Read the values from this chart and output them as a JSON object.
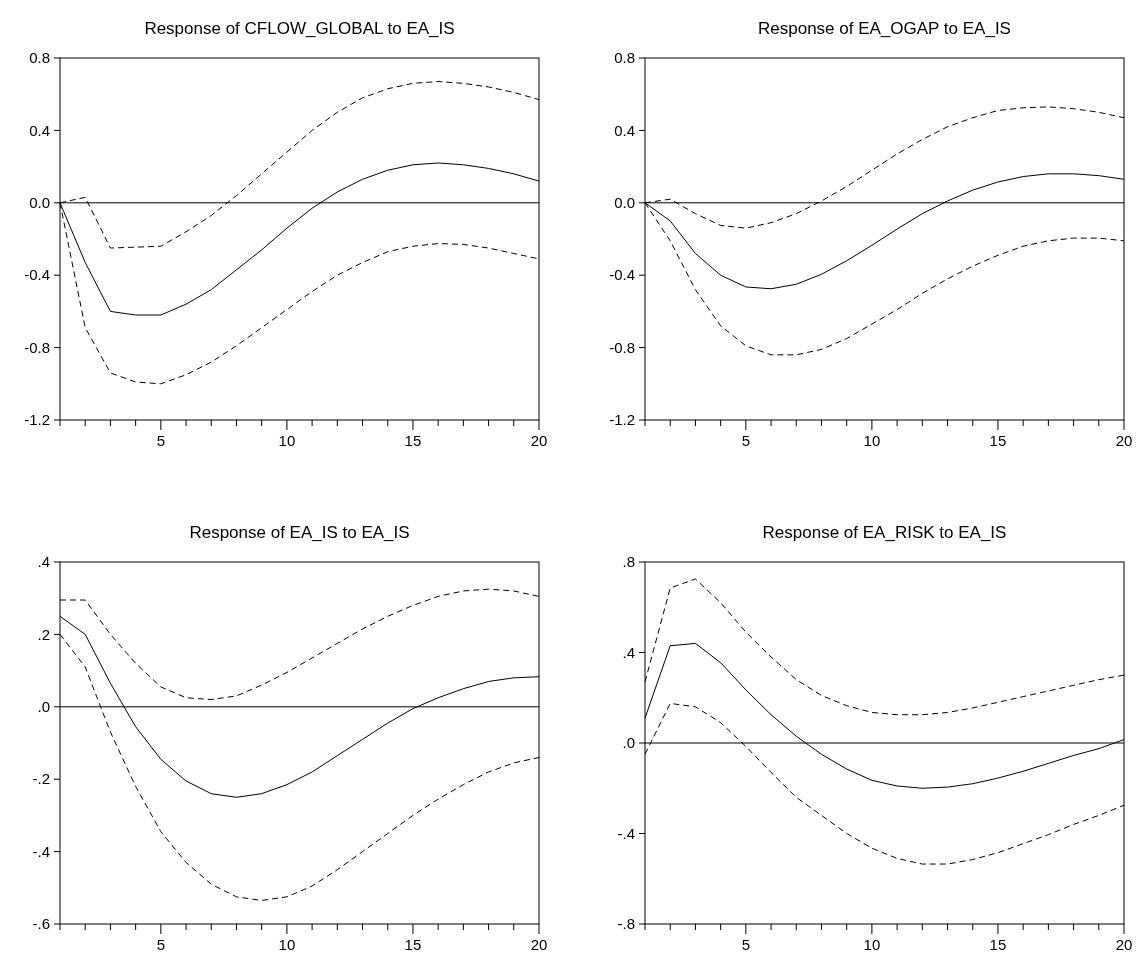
{
  "chart_data": [
    {
      "type": "line",
      "title": "Response of CFLOW_GLOBAL to EA_IS",
      "x": [
        1,
        2,
        3,
        4,
        5,
        6,
        7,
        8,
        9,
        10,
        11,
        12,
        13,
        14,
        15,
        16,
        17,
        18,
        19,
        20
      ],
      "xlim": [
        1,
        20
      ],
      "xticks": [
        {
          "value": 1,
          "label": null
        },
        {
          "value": 2,
          "label": null
        },
        {
          "value": 3,
          "label": null
        },
        {
          "value": 4,
          "label": null
        },
        5,
        {
          "value": 6,
          "label": null
        },
        {
          "value": 7,
          "label": null
        },
        {
          "value": 8,
          "label": null
        },
        {
          "value": 9,
          "label": null
        },
        10,
        {
          "value": 11,
          "label": null
        },
        {
          "value": 12,
          "label": null
        },
        {
          "value": 13,
          "label": null
        },
        {
          "value": 14,
          "label": null
        },
        15,
        {
          "value": 16,
          "label": null
        },
        {
          "value": 17,
          "label": null
        },
        {
          "value": 18,
          "label": null
        },
        {
          "value": 19,
          "label": null
        },
        20
      ],
      "ylim": [
        -1.2,
        0.8
      ],
      "yticks": [
        {
          "value": -1.2,
          "label": "-1.2"
        },
        {
          "value": -0.8,
          "label": "-0.8"
        },
        {
          "value": -0.4,
          "label": "-0.4"
        },
        {
          "value": 0,
          "label": "0.0"
        },
        {
          "value": 0.4,
          "label": "0.4"
        },
        {
          "value": 0.8,
          "label": "0.8"
        }
      ],
      "ref_lines": [
        {
          "axis": "y",
          "value": 0,
          "color": "#000000"
        }
      ],
      "grid": false,
      "series": [
        {
          "color": "#000000",
          "line_style": "solid",
          "values": [
            0,
            -0.33,
            -0.6,
            -0.62,
            -0.62,
            -0.56,
            -0.48,
            -0.37,
            -0.26,
            -0.14,
            -0.03,
            0.06,
            0.13,
            0.18,
            0.21,
            0.22,
            0.21,
            0.19,
            0.16,
            0.12
          ]
        },
        {
          "color": "#000000",
          "line_style": "dashed",
          "values": [
            0,
            0.03,
            -0.25,
            -0.245,
            -0.24,
            -0.16,
            -0.07,
            0.04,
            0.16,
            0.28,
            0.4,
            0.5,
            0.58,
            0.63,
            0.66,
            0.67,
            0.66,
            0.64,
            0.61,
            0.57
          ]
        },
        {
          "color": "#000000",
          "line_style": "dashed",
          "values": [
            0,
            -0.69,
            -0.94,
            -0.99,
            -1.0,
            -0.95,
            -0.88,
            -0.79,
            -0.69,
            -0.59,
            -0.49,
            -0.4,
            -0.33,
            -0.27,
            -0.24,
            -0.225,
            -0.23,
            -0.25,
            -0.28,
            -0.31
          ]
        }
      ]
    },
    {
      "type": "line",
      "title": "Response of EA_OGAP to EA_IS",
      "x": [
        1,
        2,
        3,
        4,
        5,
        6,
        7,
        8,
        9,
        10,
        11,
        12,
        13,
        14,
        15,
        16,
        17,
        18,
        19,
        20
      ],
      "xlim": [
        1,
        20
      ],
      "xticks": [
        {
          "value": 1,
          "label": null
        },
        {
          "value": 2,
          "label": null
        },
        {
          "value": 3,
          "label": null
        },
        {
          "value": 4,
          "label": null
        },
        5,
        {
          "value": 6,
          "label": null
        },
        {
          "value": 7,
          "label": null
        },
        {
          "value": 8,
          "label": null
        },
        {
          "value": 9,
          "label": null
        },
        10,
        {
          "value": 11,
          "label": null
        },
        {
          "value": 12,
          "label": null
        },
        {
          "value": 13,
          "label": null
        },
        {
          "value": 14,
          "label": null
        },
        15,
        {
          "value": 16,
          "label": null
        },
        {
          "value": 17,
          "label": null
        },
        {
          "value": 18,
          "label": null
        },
        {
          "value": 19,
          "label": null
        },
        20
      ],
      "ylim": [
        -1.2,
        0.8
      ],
      "yticks": [
        {
          "value": -1.2,
          "label": "-1.2"
        },
        {
          "value": -0.8,
          "label": "-0.8"
        },
        {
          "value": -0.4,
          "label": "-0.4"
        },
        {
          "value": 0,
          "label": "0.0"
        },
        {
          "value": 0.4,
          "label": "0.4"
        },
        {
          "value": 0.8,
          "label": "0.8"
        }
      ],
      "ref_lines": [
        {
          "axis": "y",
          "value": 0,
          "color": "#000000"
        }
      ],
      "grid": false,
      "series": [
        {
          "color": "#000000",
          "line_style": "solid",
          "values": [
            0,
            -0.1,
            -0.28,
            -0.4,
            -0.465,
            -0.475,
            -0.45,
            -0.395,
            -0.32,
            -0.235,
            -0.145,
            -0.06,
            0.01,
            0.07,
            0.115,
            0.145,
            0.16,
            0.16,
            0.15,
            0.13
          ]
        },
        {
          "color": "#000000",
          "line_style": "dashed",
          "values": [
            0,
            0.02,
            -0.06,
            -0.125,
            -0.14,
            -0.11,
            -0.06,
            0.01,
            0.09,
            0.18,
            0.27,
            0.35,
            0.42,
            0.47,
            0.51,
            0.525,
            0.53,
            0.52,
            0.5,
            0.47
          ]
        },
        {
          "color": "#000000",
          "line_style": "dashed",
          "values": [
            0,
            -0.21,
            -0.48,
            -0.68,
            -0.79,
            -0.84,
            -0.84,
            -0.81,
            -0.75,
            -0.67,
            -0.59,
            -0.5,
            -0.42,
            -0.35,
            -0.29,
            -0.24,
            -0.21,
            -0.195,
            -0.195,
            -0.21
          ]
        }
      ]
    },
    {
      "type": "line",
      "title": "Response of EA_IS to EA_IS",
      "x": [
        1,
        2,
        3,
        4,
        5,
        6,
        7,
        8,
        9,
        10,
        11,
        12,
        13,
        14,
        15,
        16,
        17,
        18,
        19,
        20
      ],
      "xlim": [
        1,
        20
      ],
      "xticks": [
        {
          "value": 1,
          "label": null
        },
        {
          "value": 2,
          "label": null
        },
        {
          "value": 3,
          "label": null
        },
        {
          "value": 4,
          "label": null
        },
        5,
        {
          "value": 6,
          "label": null
        },
        {
          "value": 7,
          "label": null
        },
        {
          "value": 8,
          "label": null
        },
        {
          "value": 9,
          "label": null
        },
        10,
        {
          "value": 11,
          "label": null
        },
        {
          "value": 12,
          "label": null
        },
        {
          "value": 13,
          "label": null
        },
        {
          "value": 14,
          "label": null
        },
        15,
        {
          "value": 16,
          "label": null
        },
        {
          "value": 17,
          "label": null
        },
        {
          "value": 18,
          "label": null
        },
        {
          "value": 19,
          "label": null
        },
        20
      ],
      "ylim": [
        -0.6,
        0.4
      ],
      "yticks": [
        {
          "value": -0.6,
          "label": "-.6"
        },
        {
          "value": -0.4,
          "label": "-.4"
        },
        {
          "value": -0.2,
          "label": "-.2"
        },
        {
          "value": 0,
          "label": ".0"
        },
        {
          "value": 0.2,
          "label": ".2"
        },
        {
          "value": 0.4,
          "label": ".4"
        }
      ],
      "ref_lines": [
        {
          "axis": "y",
          "value": 0,
          "color": "#000000"
        }
      ],
      "grid": false,
      "series": [
        {
          "color": "#000000",
          "line_style": "solid",
          "values": [
            0.25,
            0.2,
            0.065,
            -0.055,
            -0.145,
            -0.205,
            -0.24,
            -0.25,
            -0.24,
            -0.215,
            -0.18,
            -0.135,
            -0.09,
            -0.045,
            -0.005,
            0.025,
            0.05,
            0.07,
            0.08,
            0.083
          ]
        },
        {
          "color": "#000000",
          "line_style": "dashed",
          "values": [
            0.295,
            0.295,
            0.2,
            0.12,
            0.055,
            0.025,
            0.02,
            0.03,
            0.06,
            0.095,
            0.135,
            0.175,
            0.215,
            0.25,
            0.28,
            0.305,
            0.32,
            0.325,
            0.32,
            0.305
          ]
        },
        {
          "color": "#000000",
          "line_style": "dashed",
          "values": [
            0.2,
            0.11,
            -0.07,
            -0.22,
            -0.345,
            -0.43,
            -0.49,
            -0.525,
            -0.535,
            -0.525,
            -0.495,
            -0.45,
            -0.4,
            -0.35,
            -0.3,
            -0.255,
            -0.215,
            -0.18,
            -0.155,
            -0.14
          ]
        }
      ]
    },
    {
      "type": "line",
      "title": "Response of EA_RISK to EA_IS",
      "x": [
        1,
        2,
        3,
        4,
        5,
        6,
        7,
        8,
        9,
        10,
        11,
        12,
        13,
        14,
        15,
        16,
        17,
        18,
        19,
        20
      ],
      "xlim": [
        1,
        20
      ],
      "xticks": [
        {
          "value": 1,
          "label": null
        },
        {
          "value": 2,
          "label": null
        },
        {
          "value": 3,
          "label": null
        },
        {
          "value": 4,
          "label": null
        },
        5,
        {
          "value": 6,
          "label": null
        },
        {
          "value": 7,
          "label": null
        },
        {
          "value": 8,
          "label": null
        },
        {
          "value": 9,
          "label": null
        },
        10,
        {
          "value": 11,
          "label": null
        },
        {
          "value": 12,
          "label": null
        },
        {
          "value": 13,
          "label": null
        },
        {
          "value": 14,
          "label": null
        },
        15,
        {
          "value": 16,
          "label": null
        },
        {
          "value": 17,
          "label": null
        },
        {
          "value": 18,
          "label": null
        },
        {
          "value": 19,
          "label": null
        },
        20
      ],
      "ylim": [
        -0.8,
        0.8
      ],
      "yticks": [
        {
          "value": -0.8,
          "label": "-.8"
        },
        {
          "value": -0.4,
          "label": "-.4"
        },
        {
          "value": 0,
          "label": ".0"
        },
        {
          "value": 0.4,
          "label": ".4"
        },
        {
          "value": 0.8,
          "label": ".8"
        }
      ],
      "ref_lines": [
        {
          "axis": "y",
          "value": 0,
          "color": "#000000"
        }
      ],
      "grid": false,
      "series": [
        {
          "color": "#000000",
          "line_style": "solid",
          "values": [
            0.11,
            0.43,
            0.44,
            0.355,
            0.235,
            0.125,
            0.03,
            -0.05,
            -0.115,
            -0.165,
            -0.19,
            -0.2,
            -0.195,
            -0.18,
            -0.155,
            -0.125,
            -0.09,
            -0.055,
            -0.025,
            0.015
          ]
        },
        {
          "color": "#000000",
          "line_style": "dashed",
          "values": [
            0.27,
            0.685,
            0.725,
            0.62,
            0.49,
            0.38,
            0.28,
            0.21,
            0.165,
            0.135,
            0.125,
            0.125,
            0.135,
            0.155,
            0.18,
            0.205,
            0.23,
            0.255,
            0.28,
            0.3
          ]
        },
        {
          "color": "#000000",
          "line_style": "dashed",
          "values": [
            -0.05,
            0.175,
            0.16,
            0.09,
            -0.015,
            -0.13,
            -0.24,
            -0.32,
            -0.4,
            -0.465,
            -0.51,
            -0.535,
            -0.535,
            -0.515,
            -0.485,
            -0.445,
            -0.405,
            -0.36,
            -0.32,
            -0.275
          ]
        }
      ]
    }
  ]
}
